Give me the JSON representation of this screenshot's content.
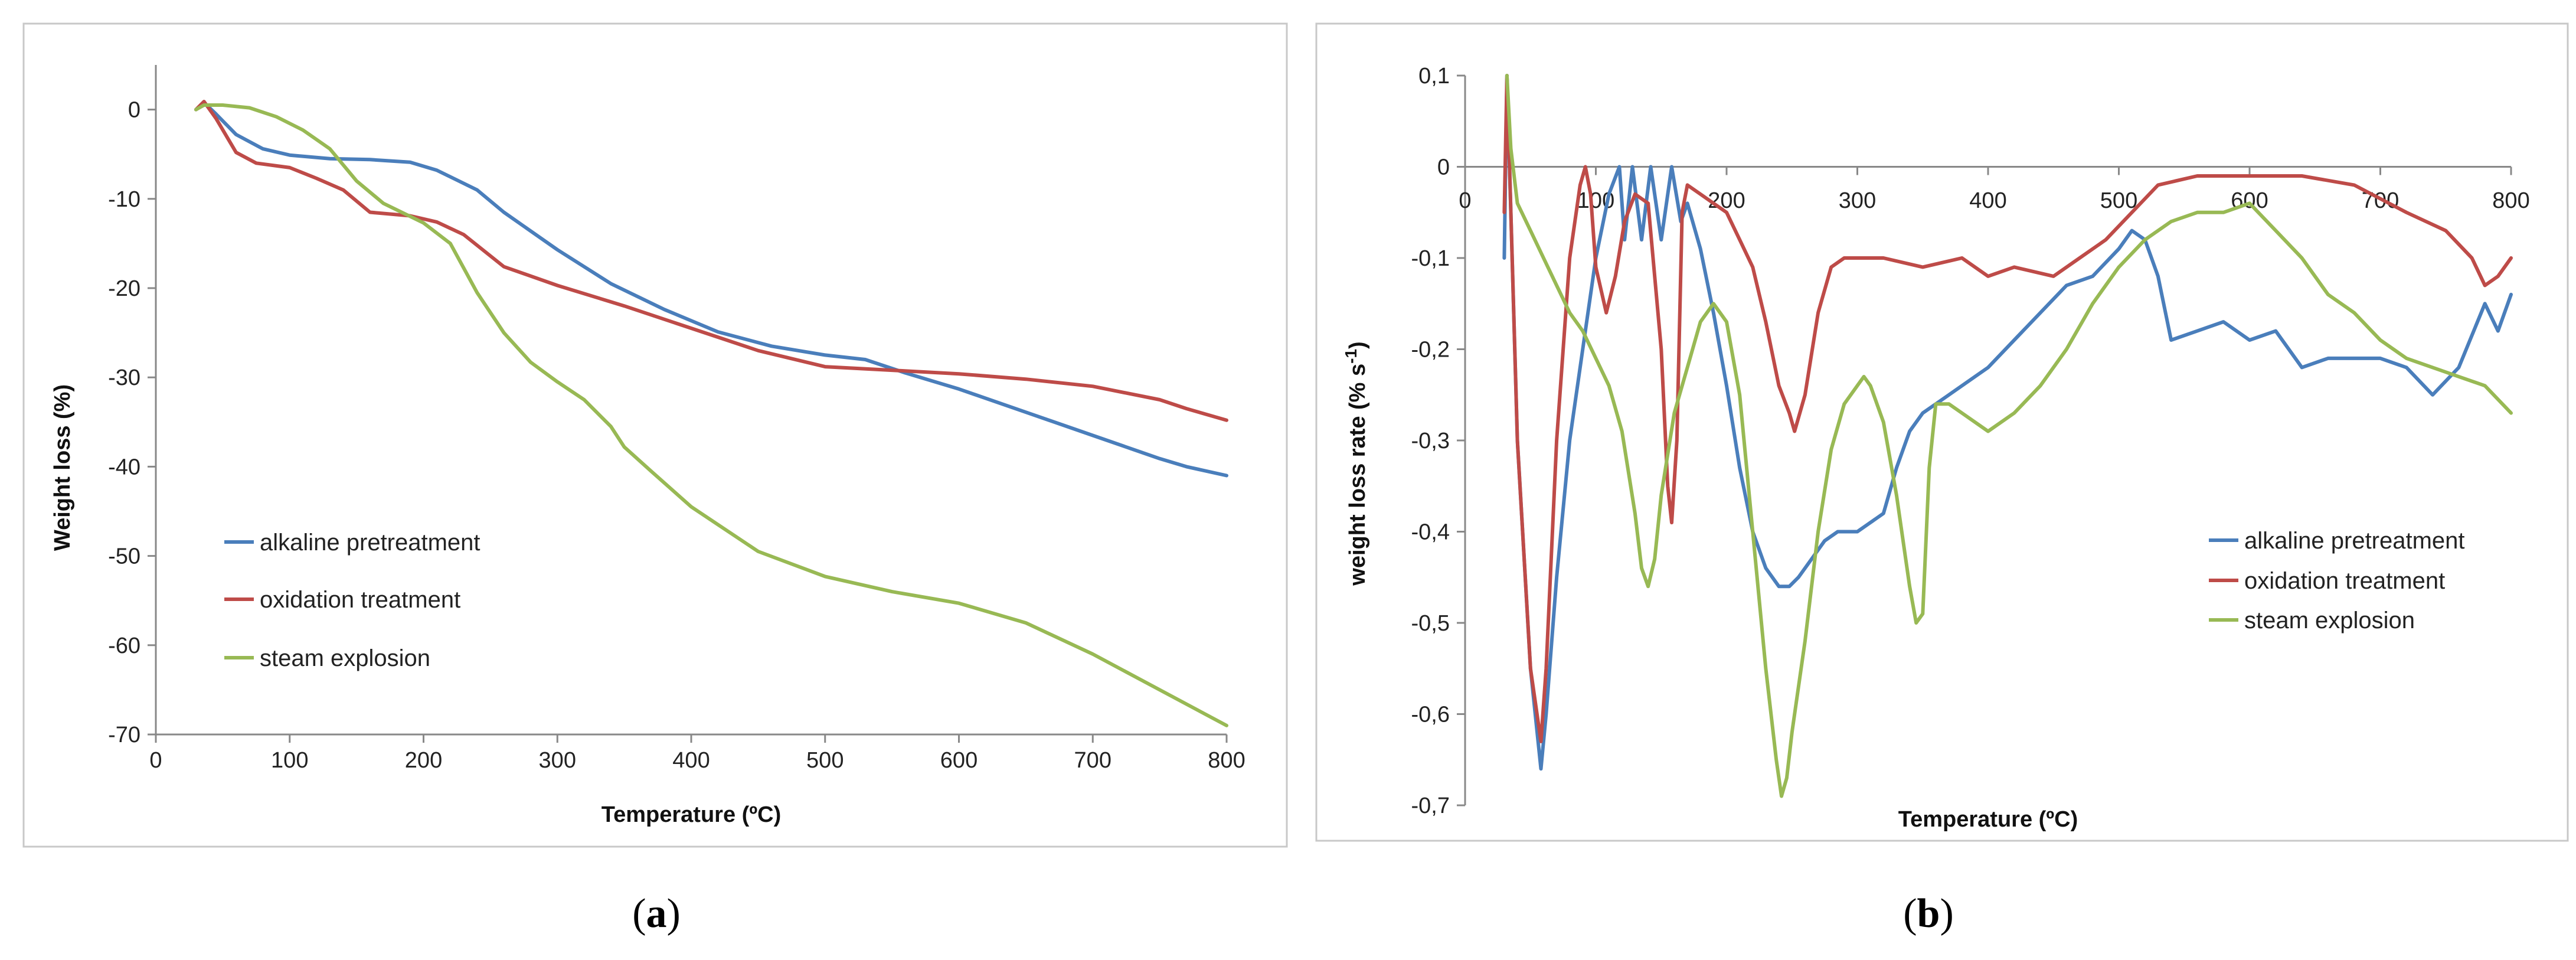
{
  "chart_data": [
    {
      "type": "line",
      "caption_open": "(",
      "caption_letter": "a",
      "caption_close": ")",
      "title": "",
      "xlabel": "Temperature (ºC)",
      "ylabel": "Weight loss (%)",
      "xlim": [
        0,
        800
      ],
      "ylim": [
        -70,
        5
      ],
      "xticks": [
        "0",
        "100",
        "200",
        "300",
        "400",
        "500",
        "600",
        "700",
        "800"
      ],
      "yticks": [
        "0",
        "-10",
        "-20",
        "-30",
        "-40",
        "-50",
        "-60",
        "-70"
      ],
      "grid": false,
      "legend_position": "lower-left",
      "series": [
        {
          "name": "alkaline pretreatment",
          "color": "#4a7ebb",
          "x": [
            30,
            36,
            45,
            60,
            80,
            100,
            130,
            160,
            190,
            210,
            240,
            260,
            300,
            340,
            380,
            420,
            460,
            500,
            530,
            560,
            600,
            650,
            700,
            750,
            770,
            800
          ],
          "y": [
            0,
            0.8,
            -0.5,
            -2.8,
            -4.4,
            -5.1,
            -5.5,
            -5.6,
            -5.9,
            -6.8,
            -9.0,
            -11.5,
            -15.7,
            -19.5,
            -22.4,
            -24.9,
            -26.5,
            -27.5,
            -28.0,
            -29.5,
            -31.3,
            -33.9,
            -36.5,
            -39.1,
            -40.0,
            -41.0
          ]
        },
        {
          "name": "oxidation treatment",
          "color": "#be4b48",
          "x": [
            30,
            36,
            45,
            60,
            75,
            100,
            120,
            140,
            160,
            190,
            210,
            230,
            260,
            300,
            350,
            400,
            450,
            500,
            550,
            600,
            650,
            700,
            750,
            770,
            800
          ],
          "y": [
            0,
            0.9,
            -1.0,
            -4.8,
            -6.0,
            -6.5,
            -7.7,
            -9.0,
            -11.5,
            -11.9,
            -12.6,
            -14.0,
            -17.6,
            -19.7,
            -22.0,
            -24.5,
            -27.0,
            -28.8,
            -29.2,
            -29.6,
            -30.2,
            -31.0,
            -32.5,
            -33.5,
            -34.8
          ]
        },
        {
          "name": "steam explosion",
          "color": "#98b954",
          "x": [
            30,
            36,
            50,
            70,
            90,
            110,
            130,
            150,
            170,
            200,
            220,
            240,
            260,
            280,
            300,
            320,
            340,
            350,
            370,
            400,
            450,
            500,
            550,
            600,
            650,
            700,
            750,
            800
          ],
          "y": [
            0,
            0.5,
            0.5,
            0.2,
            -0.8,
            -2.3,
            -4.4,
            -8.0,
            -10.5,
            -12.7,
            -15.0,
            -20.5,
            -25.0,
            -28.3,
            -30.5,
            -32.5,
            -35.5,
            -37.8,
            -40.5,
            -44.5,
            -49.5,
            -52.3,
            -54.0,
            -55.3,
            -57.5,
            -61.0,
            -65.0,
            -69.0
          ]
        }
      ]
    },
    {
      "type": "line",
      "caption_open": "(",
      "caption_letter": "b",
      "caption_close": ")",
      "title": "",
      "xlabel": "Temperature (ºC)",
      "ylabel": "weight loss rate (% s",
      "ylabel_sup": "-1",
      "ylabel_close": ")",
      "xlim": [
        0,
        800
      ],
      "ylim": [
        -0.7,
        0.1
      ],
      "xticks": [
        "0",
        "100",
        "200",
        "300",
        "400",
        "500",
        "600",
        "700",
        "800"
      ],
      "yticks": [
        "0,1",
        "0",
        "-0,1",
        "-0,2",
        "-0,3",
        "-0,4",
        "-0,5",
        "-0,6",
        "-0,7"
      ],
      "grid": false,
      "legend_position": "lower-right",
      "series": [
        {
          "name": "alkaline pretreatment",
          "color": "#4a7ebb",
          "x": [
            30,
            32,
            40,
            50,
            58,
            62,
            70,
            80,
            90,
            100,
            110,
            118,
            122,
            128,
            135,
            142,
            150,
            158,
            165,
            170,
            180,
            190,
            200,
            210,
            220,
            230,
            240,
            248,
            255,
            265,
            275,
            285,
            300,
            320,
            330,
            340,
            350,
            370,
            400,
            420,
            440,
            460,
            480,
            500,
            510,
            520,
            530,
            540,
            560,
            580,
            600,
            620,
            640,
            660,
            680,
            700,
            720,
            740,
            760,
            780,
            790,
            800
          ],
          "y": [
            -0.1,
            0.1,
            -0.3,
            -0.55,
            -0.66,
            -0.6,
            -0.45,
            -0.3,
            -0.2,
            -0.1,
            -0.03,
            0,
            -0.08,
            0,
            -0.08,
            0,
            -0.08,
            0,
            -0.06,
            -0.04,
            -0.09,
            -0.16,
            -0.24,
            -0.33,
            -0.4,
            -0.44,
            -0.46,
            -0.46,
            -0.45,
            -0.43,
            -0.41,
            -0.4,
            -0.4,
            -0.38,
            -0.33,
            -0.29,
            -0.27,
            -0.25,
            -0.22,
            -0.19,
            -0.16,
            -0.13,
            -0.12,
            -0.09,
            -0.07,
            -0.08,
            -0.12,
            -0.19,
            -0.18,
            -0.17,
            -0.19,
            -0.18,
            -0.22,
            -0.21,
            -0.21,
            -0.21,
            -0.22,
            -0.25,
            -0.22,
            -0.15,
            -0.18,
            -0.14
          ]
        },
        {
          "name": "oxidation treatment",
          "color": "#be4b48",
          "x": [
            30,
            32,
            40,
            50,
            58,
            62,
            70,
            80,
            88,
            92,
            96,
            100,
            108,
            115,
            122,
            130,
            140,
            150,
            155,
            158,
            162,
            166,
            170,
            180,
            190,
            200,
            210,
            220,
            230,
            240,
            248,
            252,
            260,
            270,
            280,
            290,
            300,
            320,
            350,
            380,
            400,
            420,
            450,
            470,
            490,
            510,
            530,
            560,
            600,
            640,
            680,
            720,
            750,
            770,
            780,
            790,
            800
          ],
          "y": [
            -0.05,
            0.1,
            -0.3,
            -0.55,
            -0.63,
            -0.55,
            -0.3,
            -0.1,
            -0.02,
            0,
            -0.03,
            -0.11,
            -0.16,
            -0.12,
            -0.06,
            -0.03,
            -0.04,
            -0.2,
            -0.35,
            -0.39,
            -0.3,
            -0.05,
            -0.02,
            -0.03,
            -0.04,
            -0.05,
            -0.08,
            -0.11,
            -0.17,
            -0.24,
            -0.27,
            -0.29,
            -0.25,
            -0.16,
            -0.11,
            -0.1,
            -0.1,
            -0.1,
            -0.11,
            -0.1,
            -0.12,
            -0.11,
            -0.12,
            -0.1,
            -0.08,
            -0.05,
            -0.02,
            -0.01,
            -0.01,
            -0.01,
            -0.02,
            -0.05,
            -0.07,
            -0.1,
            -0.13,
            -0.12,
            -0.1
          ]
        },
        {
          "name": "steam explosion",
          "color": "#98b954",
          "x": [
            32,
            35,
            40,
            50,
            60,
            70,
            80,
            90,
            100,
            110,
            120,
            130,
            135,
            140,
            145,
            150,
            160,
            170,
            180,
            190,
            200,
            210,
            220,
            230,
            238,
            242,
            246,
            250,
            260,
            270,
            280,
            290,
            300,
            305,
            310,
            320,
            330,
            340,
            345,
            350,
            355,
            360,
            370,
            380,
            400,
            420,
            440,
            460,
            480,
            500,
            520,
            540,
            560,
            580,
            600,
            620,
            640,
            660,
            680,
            700,
            720,
            740,
            760,
            780,
            800
          ],
          "y": [
            0.1,
            0.02,
            -0.04,
            -0.07,
            -0.1,
            -0.13,
            -0.16,
            -0.18,
            -0.21,
            -0.24,
            -0.29,
            -0.38,
            -0.44,
            -0.46,
            -0.43,
            -0.36,
            -0.27,
            -0.22,
            -0.17,
            -0.15,
            -0.17,
            -0.25,
            -0.4,
            -0.55,
            -0.65,
            -0.69,
            -0.67,
            -0.62,
            -0.52,
            -0.4,
            -0.31,
            -0.26,
            -0.24,
            -0.23,
            -0.24,
            -0.28,
            -0.36,
            -0.46,
            -0.5,
            -0.49,
            -0.33,
            -0.26,
            -0.26,
            -0.27,
            -0.29,
            -0.27,
            -0.24,
            -0.2,
            -0.15,
            -0.11,
            -0.08,
            -0.06,
            -0.05,
            -0.05,
            -0.04,
            -0.07,
            -0.1,
            -0.14,
            -0.16,
            -0.19,
            -0.21,
            -0.22,
            -0.23,
            -0.24,
            -0.27
          ]
        }
      ]
    }
  ]
}
